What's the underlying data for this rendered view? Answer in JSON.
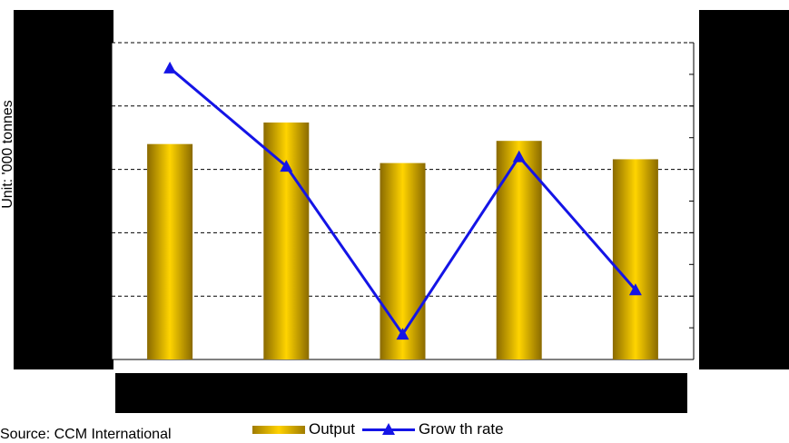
{
  "chart_data": {
    "type": "bar",
    "categories": [
      "",
      "",
      "",
      "",
      ""
    ],
    "series": [
      {
        "name": "Output",
        "type": "bar",
        "color": "#e6b800",
        "values": [
          3.4,
          3.74,
          3.1,
          3.45,
          3.16
        ]
      },
      {
        "name": "Grow th rate",
        "type": "line",
        "color": "#1414e6",
        "marker": "triangle",
        "values": [
          4.6,
          3.05,
          0.4,
          3.2,
          1.1
        ]
      }
    ],
    "ylim": [
      0,
      5
    ],
    "grid": "dashed horizontal",
    "ylabel": "Unit: '000 tonnes",
    "legend_position": "bottom"
  },
  "source_text": "Source: CCM International"
}
